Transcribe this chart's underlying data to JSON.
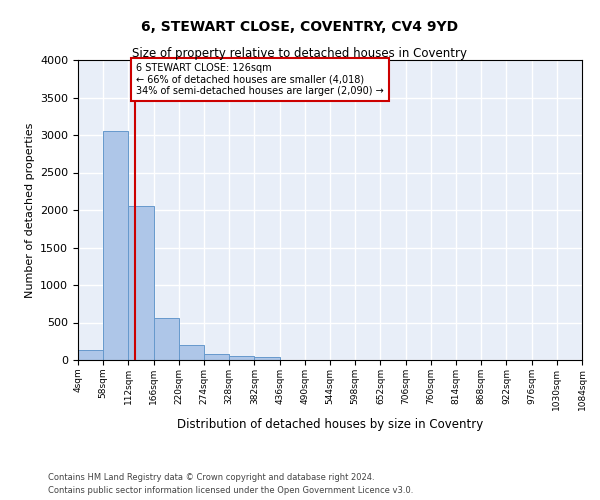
{
  "title": "6, STEWART CLOSE, COVENTRY, CV4 9YD",
  "subtitle": "Size of property relative to detached houses in Coventry",
  "xlabel": "Distribution of detached houses by size in Coventry",
  "ylabel": "Number of detached properties",
  "bar_color": "#aec6e8",
  "bar_edge_color": "#6699cc",
  "background_color": "#e8eef8",
  "grid_color": "#ffffff",
  "vline_x": 126,
  "vline_color": "#cc0000",
  "annotation_line1": "6 STEWART CLOSE: 126sqm",
  "annotation_line2": "← 66% of detached houses are smaller (4,018)",
  "annotation_line3": "34% of semi-detached houses are larger (2,090) →",
  "annotation_box_color": "#cc0000",
  "bins": [
    4,
    58,
    112,
    166,
    220,
    274,
    328,
    382,
    436,
    490,
    544,
    598,
    652,
    706,
    760,
    814,
    868,
    922,
    976,
    1030,
    1084
  ],
  "bar_heights": [
    140,
    3060,
    2060,
    560,
    200,
    85,
    55,
    35,
    0,
    0,
    0,
    0,
    0,
    0,
    0,
    0,
    0,
    0,
    0,
    0
  ],
  "ylim": [
    0,
    4000
  ],
  "yticks": [
    0,
    500,
    1000,
    1500,
    2000,
    2500,
    3000,
    3500,
    4000
  ],
  "footer_text": "Contains HM Land Registry data © Crown copyright and database right 2024.\nContains public sector information licensed under the Open Government Licence v3.0.",
  "figsize": [
    6.0,
    5.0
  ],
  "dpi": 100
}
